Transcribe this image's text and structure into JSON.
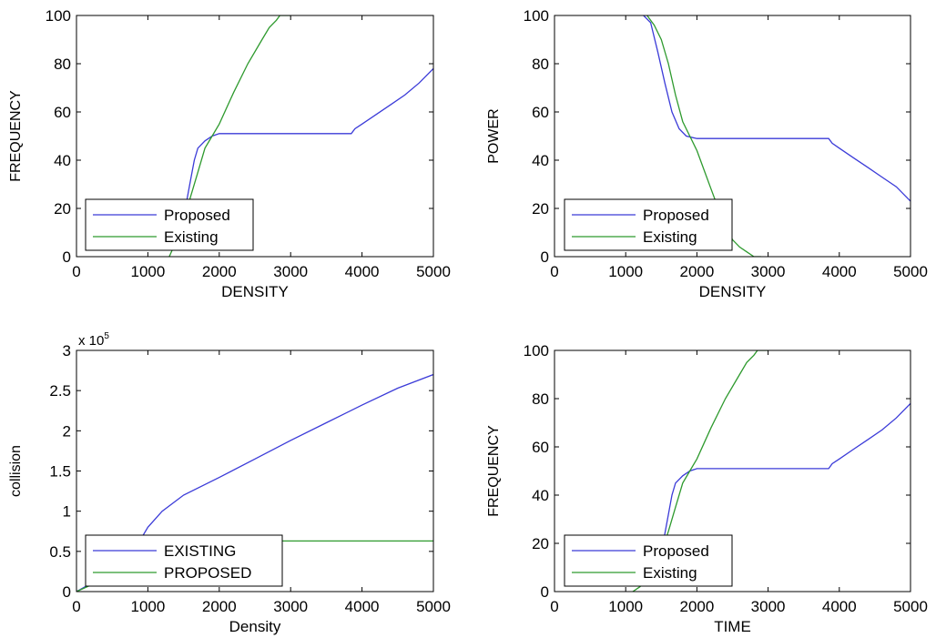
{
  "colors": {
    "blue": "#3b3bd8",
    "green": "#2e9a2e",
    "axis": "#000000"
  },
  "chart_data": [
    {
      "type": "line",
      "title": "",
      "xlabel": "DENSITY",
      "ylabel": "FREQUENCY",
      "xlim": [
        0,
        5000
      ],
      "ylim": [
        0,
        100
      ],
      "xticks": [
        "0",
        "1000",
        "2000",
        "3000",
        "4000",
        "5000"
      ],
      "yticks": [
        "0",
        "20",
        "40",
        "60",
        "80",
        "100"
      ],
      "legend": {
        "position": "bottom-left"
      },
      "grid": false,
      "series": [
        {
          "name": "Proposed",
          "color": "blue",
          "points": [
            [
              1500,
              15
            ],
            [
              1550,
              24
            ],
            [
              1600,
              32
            ],
            [
              1650,
              40
            ],
            [
              1700,
              45
            ],
            [
              1800,
              48
            ],
            [
              1900,
              50
            ],
            [
              2000,
              51
            ],
            [
              2500,
              51
            ],
            [
              3000,
              51
            ],
            [
              3500,
              51
            ],
            [
              3850,
              51
            ],
            [
              3900,
              53
            ],
            [
              4000,
              55
            ],
            [
              4200,
              59
            ],
            [
              4400,
              63
            ],
            [
              4600,
              67
            ],
            [
              4800,
              72
            ],
            [
              5000,
              78
            ]
          ]
        },
        {
          "name": "Existing",
          "color": "green",
          "points": [
            [
              1300,
              0
            ],
            [
              1450,
              10
            ],
            [
              1600,
              25
            ],
            [
              1700,
              35
            ],
            [
              1800,
              45
            ],
            [
              1900,
              50
            ],
            [
              2000,
              55
            ],
            [
              2200,
              68
            ],
            [
              2400,
              80
            ],
            [
              2600,
              90
            ],
            [
              2700,
              95
            ],
            [
              2800,
              98
            ],
            [
              2850,
              100
            ],
            [
              3000,
              100
            ]
          ]
        }
      ]
    },
    {
      "type": "line",
      "title": "",
      "xlabel": "DENSITY",
      "ylabel": "POWER",
      "xlim": [
        0,
        5000
      ],
      "ylim": [
        0,
        100
      ],
      "xticks": [
        "0",
        "1000",
        "2000",
        "3000",
        "4000",
        "5000"
      ],
      "yticks": [
        "0",
        "20",
        "40",
        "60",
        "80",
        "100"
      ],
      "legend": {
        "position": "bottom-left"
      },
      "grid": false,
      "series": [
        {
          "name": "Proposed",
          "color": "blue",
          "points": [
            [
              1250,
              100
            ],
            [
              1350,
              97
            ],
            [
              1450,
              85
            ],
            [
              1550,
              72
            ],
            [
              1650,
              60
            ],
            [
              1750,
              53
            ],
            [
              1850,
              50
            ],
            [
              2000,
              49
            ],
            [
              2500,
              49
            ],
            [
              3000,
              49
            ],
            [
              3500,
              49
            ],
            [
              3850,
              49
            ],
            [
              3900,
              47
            ],
            [
              4000,
              45
            ],
            [
              4200,
              41
            ],
            [
              4400,
              37
            ],
            [
              4600,
              33
            ],
            [
              4800,
              29
            ],
            [
              5000,
              23
            ]
          ]
        },
        {
          "name": "Existing",
          "color": "green",
          "points": [
            [
              1300,
              100
            ],
            [
              1400,
              96
            ],
            [
              1500,
              90
            ],
            [
              1600,
              80
            ],
            [
              1700,
              67
            ],
            [
              1800,
              56
            ],
            [
              1900,
              50
            ],
            [
              2000,
              44
            ],
            [
              2100,
              36
            ],
            [
              2200,
              28
            ],
            [
              2300,
              20
            ],
            [
              2400,
              13
            ],
            [
              2500,
              7
            ],
            [
              2600,
              4
            ],
            [
              2700,
              2
            ],
            [
              2800,
              0
            ],
            [
              2900,
              0
            ]
          ]
        }
      ]
    },
    {
      "type": "line",
      "title": "",
      "xlabel": "Density",
      "ylabel": "collision",
      "exponent_label": "x 10",
      "exponent_power": "5",
      "xlim": [
        0,
        5000
      ],
      "ylim": [
        0,
        3
      ],
      "xticks": [
        "0",
        "1000",
        "2000",
        "3000",
        "4000",
        "5000"
      ],
      "yticks": [
        "0",
        "0.5",
        "1",
        "1.5",
        "2",
        "2.5",
        "3"
      ],
      "legend": {
        "position": "bottom-left"
      },
      "grid": false,
      "series": [
        {
          "name": "EXISTING",
          "color": "blue",
          "points": [
            [
              0,
              0
            ],
            [
              200,
              0.1
            ],
            [
              500,
              0.25
            ],
            [
              800,
              0.5
            ],
            [
              1000,
              0.8
            ],
            [
              1200,
              1.0
            ],
            [
              1500,
              1.2
            ],
            [
              2000,
              1.42
            ],
            [
              2500,
              1.65
            ],
            [
              3000,
              1.88
            ],
            [
              3500,
              2.1
            ],
            [
              4000,
              2.32
            ],
            [
              4500,
              2.53
            ],
            [
              5000,
              2.7
            ]
          ]
        },
        {
          "name": "PROPOSED",
          "color": "green",
          "points": [
            [
              0,
              0
            ],
            [
              200,
              0.08
            ],
            [
              400,
              0.18
            ],
            [
              500,
              0.25
            ],
            [
              600,
              0.6
            ],
            [
              700,
              0.62
            ],
            [
              1000,
              0.63
            ],
            [
              2000,
              0.63
            ],
            [
              3000,
              0.63
            ],
            [
              4000,
              0.63
            ],
            [
              5000,
              0.63
            ]
          ]
        }
      ]
    },
    {
      "type": "line",
      "title": "",
      "xlabel": "TIME",
      "ylabel": "FREQUENCY",
      "xlim": [
        0,
        5000
      ],
      "ylim": [
        0,
        100
      ],
      "xticks": [
        "0",
        "1000",
        "2000",
        "3000",
        "4000",
        "5000"
      ],
      "yticks": [
        "0",
        "20",
        "40",
        "60",
        "80",
        "100"
      ],
      "legend": {
        "position": "bottom-left"
      },
      "grid": false,
      "series": [
        {
          "name": "Proposed",
          "color": "blue",
          "points": [
            [
              1500,
              15
            ],
            [
              1550,
              24
            ],
            [
              1600,
              32
            ],
            [
              1650,
              40
            ],
            [
              1700,
              45
            ],
            [
              1800,
              48
            ],
            [
              1900,
              50
            ],
            [
              2000,
              51
            ],
            [
              2500,
              51
            ],
            [
              3000,
              51
            ],
            [
              3500,
              51
            ],
            [
              3850,
              51
            ],
            [
              3900,
              53
            ],
            [
              4000,
              55
            ],
            [
              4200,
              59
            ],
            [
              4400,
              63
            ],
            [
              4600,
              67
            ],
            [
              4800,
              72
            ],
            [
              5000,
              78
            ]
          ]
        },
        {
          "name": "Existing",
          "color": "green",
          "points": [
            [
              1100,
              0
            ],
            [
              1200,
              2
            ],
            [
              1300,
              5
            ],
            [
              1450,
              12
            ],
            [
              1600,
              25
            ],
            [
              1700,
              35
            ],
            [
              1800,
              45
            ],
            [
              1900,
              50
            ],
            [
              2000,
              55
            ],
            [
              2200,
              68
            ],
            [
              2400,
              80
            ],
            [
              2600,
              90
            ],
            [
              2700,
              95
            ],
            [
              2800,
              98
            ],
            [
              2850,
              100
            ],
            [
              3000,
              100
            ]
          ]
        }
      ]
    }
  ]
}
